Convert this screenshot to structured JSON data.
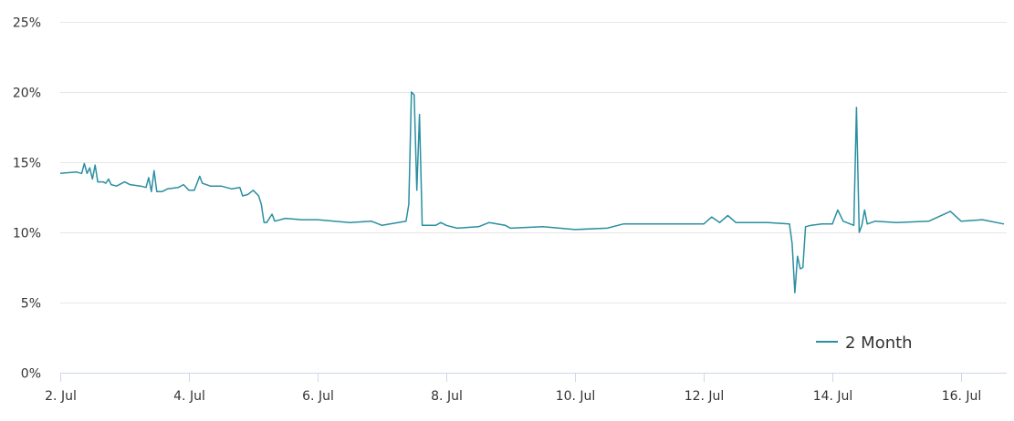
{
  "chart_data": {
    "type": "line",
    "title": "",
    "xlabel": "",
    "ylabel": "",
    "x_range": [
      "2016-07-02",
      "2016-07-16T16:00"
    ],
    "ylim": [
      0,
      25
    ],
    "grid": true,
    "legend_position": "bottom-right",
    "y_ticks": [
      "0%",
      "5%",
      "10%",
      "15%",
      "20%",
      "25%"
    ],
    "x_ticks": [
      "2. Jul",
      "4. Jul",
      "6. Jul",
      "8. Jul",
      "10. Jul",
      "12. Jul",
      "14. Jul",
      "16. Jul"
    ],
    "series": [
      {
        "name": "2 Month",
        "color": "#2a8fa0",
        "points": [
          [
            "2016-07-02T00:00",
            14.2
          ],
          [
            "2016-07-02T06:00",
            14.3
          ],
          [
            "2016-07-02T08:00",
            14.2
          ],
          [
            "2016-07-02T09:00",
            14.9
          ],
          [
            "2016-07-02T10:00",
            14.2
          ],
          [
            "2016-07-02T11:00",
            14.6
          ],
          [
            "2016-07-02T12:00",
            13.8
          ],
          [
            "2016-07-02T13:00",
            14.8
          ],
          [
            "2016-07-02T14:00",
            13.6
          ],
          [
            "2016-07-02T16:00",
            13.6
          ],
          [
            "2016-07-02T17:00",
            13.5
          ],
          [
            "2016-07-02T18:00",
            13.8
          ],
          [
            "2016-07-02T19:00",
            13.4
          ],
          [
            "2016-07-02T21:00",
            13.3
          ],
          [
            "2016-07-03T00:00",
            13.6
          ],
          [
            "2016-07-03T02:00",
            13.4
          ],
          [
            "2016-07-03T06:00",
            13.3
          ],
          [
            "2016-07-03T08:00",
            13.2
          ],
          [
            "2016-07-03T09:00",
            13.9
          ],
          [
            "2016-07-03T10:00",
            12.9
          ],
          [
            "2016-07-03T11:00",
            14.4
          ],
          [
            "2016-07-03T12:00",
            12.9
          ],
          [
            "2016-07-03T14:00",
            12.9
          ],
          [
            "2016-07-03T16:00",
            13.1
          ],
          [
            "2016-07-03T20:00",
            13.2
          ],
          [
            "2016-07-03T22:00",
            13.4
          ],
          [
            "2016-07-04T00:00",
            13.0
          ],
          [
            "2016-07-04T02:00",
            13.0
          ],
          [
            "2016-07-04T04:00",
            14.0
          ],
          [
            "2016-07-04T05:00",
            13.5
          ],
          [
            "2016-07-04T08:00",
            13.3
          ],
          [
            "2016-07-04T12:00",
            13.3
          ],
          [
            "2016-07-04T16:00",
            13.1
          ],
          [
            "2016-07-04T19:00",
            13.2
          ],
          [
            "2016-07-04T20:00",
            12.6
          ],
          [
            "2016-07-04T22:00",
            12.7
          ],
          [
            "2016-07-05T00:00",
            13.0
          ],
          [
            "2016-07-05T02:00",
            12.6
          ],
          [
            "2016-07-05T03:00",
            12.0
          ],
          [
            "2016-07-05T04:00",
            10.7
          ],
          [
            "2016-07-05T05:00",
            10.7
          ],
          [
            "2016-07-05T07:00",
            11.3
          ],
          [
            "2016-07-05T08:00",
            10.8
          ],
          [
            "2016-07-05T12:00",
            11.0
          ],
          [
            "2016-07-05T18:00",
            10.9
          ],
          [
            "2016-07-06T00:00",
            10.9
          ],
          [
            "2016-07-06T12:00",
            10.7
          ],
          [
            "2016-07-06T20:00",
            10.8
          ],
          [
            "2016-07-07T00:00",
            10.5
          ],
          [
            "2016-07-07T06:00",
            10.7
          ],
          [
            "2016-07-07T09:00",
            10.8
          ],
          [
            "2016-07-07T10:00",
            12.0
          ],
          [
            "2016-07-07T11:00",
            20.0
          ],
          [
            "2016-07-07T12:00",
            19.8
          ],
          [
            "2016-07-07T13:00",
            13.0
          ],
          [
            "2016-07-07T14:00",
            18.4
          ],
          [
            "2016-07-07T15:00",
            10.5
          ],
          [
            "2016-07-07T18:00",
            10.5
          ],
          [
            "2016-07-07T20:00",
            10.5
          ],
          [
            "2016-07-07T22:00",
            10.7
          ],
          [
            "2016-07-08T00:00",
            10.5
          ],
          [
            "2016-07-08T04:00",
            10.3
          ],
          [
            "2016-07-08T12:00",
            10.4
          ],
          [
            "2016-07-08T16:00",
            10.7
          ],
          [
            "2016-07-08T22:00",
            10.5
          ],
          [
            "2016-07-09T00:00",
            10.3
          ],
          [
            "2016-07-09T12:00",
            10.4
          ],
          [
            "2016-07-10T00:00",
            10.2
          ],
          [
            "2016-07-10T12:00",
            10.3
          ],
          [
            "2016-07-10T18:00",
            10.6
          ],
          [
            "2016-07-11T00:00",
            10.6
          ],
          [
            "2016-07-11T12:00",
            10.6
          ],
          [
            "2016-07-12T00:00",
            10.6
          ],
          [
            "2016-07-12T03:00",
            11.1
          ],
          [
            "2016-07-12T06:00",
            10.7
          ],
          [
            "2016-07-12T09:00",
            11.2
          ],
          [
            "2016-07-12T12:00",
            10.7
          ],
          [
            "2016-07-13T00:00",
            10.7
          ],
          [
            "2016-07-13T08:00",
            10.6
          ],
          [
            "2016-07-13T09:00",
            9.2
          ],
          [
            "2016-07-13T10:00",
            5.7
          ],
          [
            "2016-07-13T11:00",
            8.3
          ],
          [
            "2016-07-13T12:00",
            7.4
          ],
          [
            "2016-07-13T13:00",
            7.5
          ],
          [
            "2016-07-13T14:00",
            10.4
          ],
          [
            "2016-07-13T16:00",
            10.5
          ],
          [
            "2016-07-13T20:00",
            10.6
          ],
          [
            "2016-07-14T00:00",
            10.6
          ],
          [
            "2016-07-14T02:00",
            11.6
          ],
          [
            "2016-07-14T04:00",
            10.8
          ],
          [
            "2016-07-14T08:00",
            10.5
          ],
          [
            "2016-07-14T09:00",
            18.9
          ],
          [
            "2016-07-14T10:00",
            10.0
          ],
          [
            "2016-07-14T11:00",
            10.5
          ],
          [
            "2016-07-14T12:00",
            11.6
          ],
          [
            "2016-07-14T13:00",
            10.6
          ],
          [
            "2016-07-14T16:00",
            10.8
          ],
          [
            "2016-07-15T00:00",
            10.7
          ],
          [
            "2016-07-15T12:00",
            10.8
          ],
          [
            "2016-07-15T20:00",
            11.5
          ],
          [
            "2016-07-16T00:00",
            10.8
          ],
          [
            "2016-07-16T08:00",
            10.9
          ],
          [
            "2016-07-16T16:00",
            10.6
          ]
        ]
      }
    ]
  }
}
